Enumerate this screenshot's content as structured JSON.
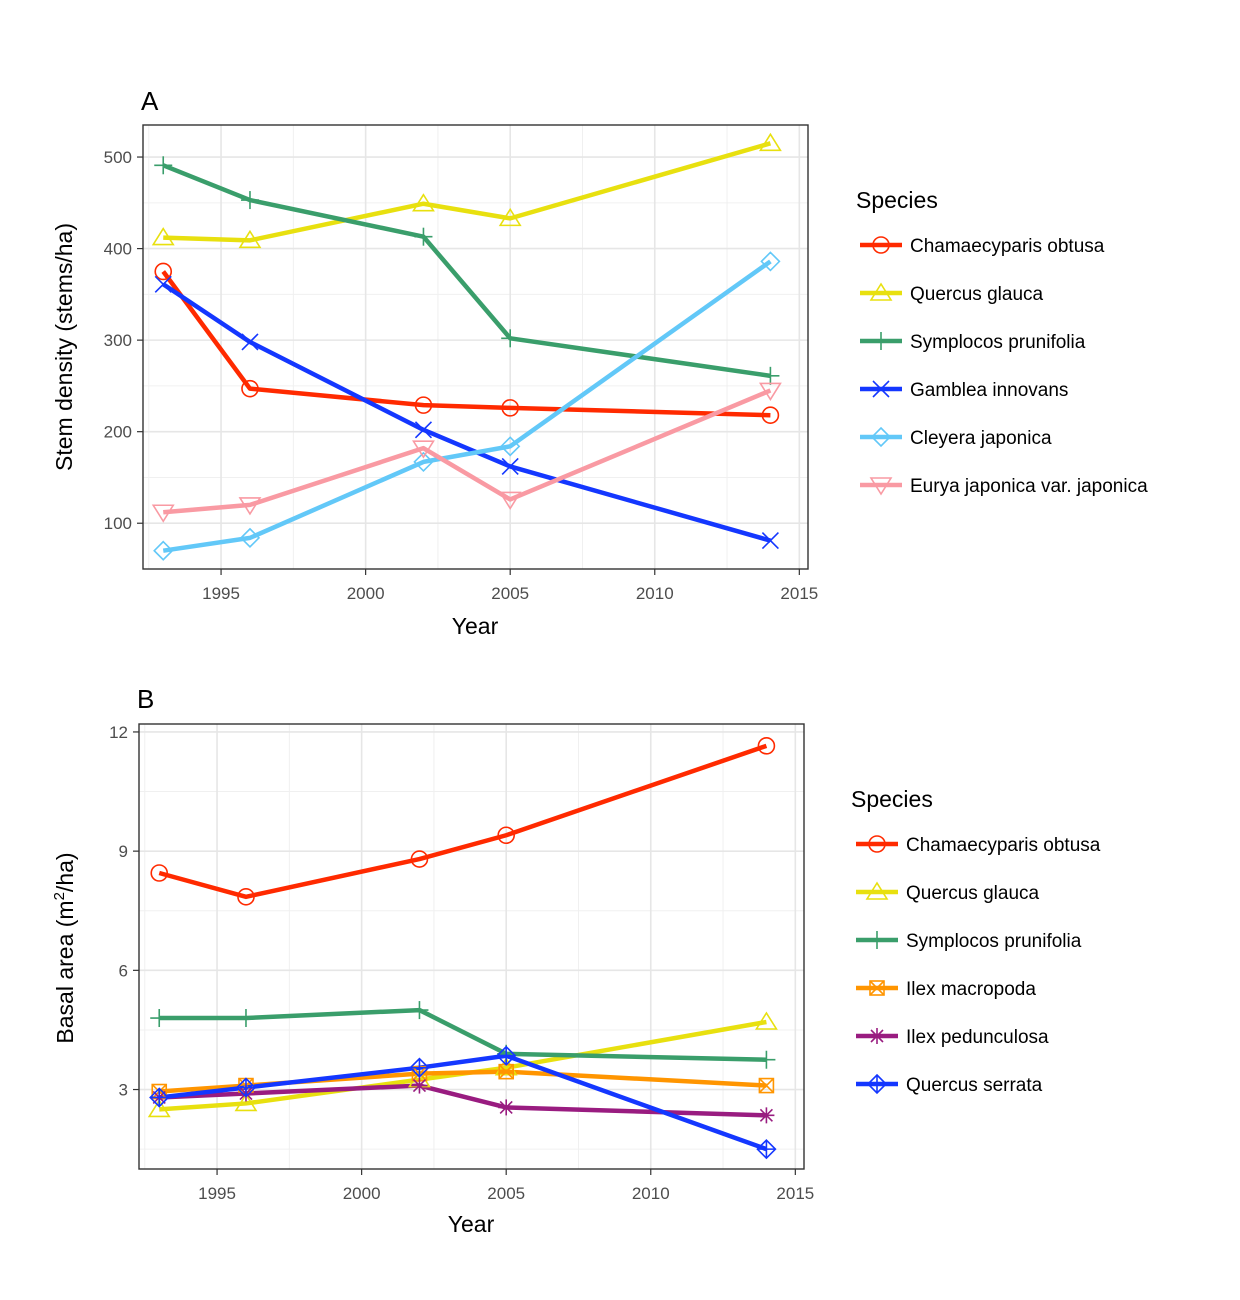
{
  "chart_data": [
    {
      "type": "line",
      "panel": "A",
      "xlabel": "Year",
      "ylabel": "Stem density (stems/ha)",
      "xlim": [
        1992.3,
        2015.3
      ],
      "ylim": [
        50,
        535
      ],
      "xticks": [
        1995,
        2000,
        2005,
        2010,
        2015
      ],
      "yticks": [
        100,
        200,
        300,
        400,
        500
      ],
      "grid": true,
      "legend_title": "Species",
      "legend_position": "right",
      "series": [
        {
          "name": "Chamaecyparis obtusa",
          "color": "#ff2a00",
          "marker": "circle",
          "x": [
            1993,
            1996,
            2002,
            2005,
            2014
          ],
          "y": [
            375,
            247,
            229,
            226,
            218
          ]
        },
        {
          "name": "Quercus glauca",
          "color": "#e8e00f",
          "marker": "triangle-up",
          "x": [
            1993,
            1996,
            2002,
            2005,
            2014
          ],
          "y": [
            412,
            409,
            449,
            433,
            515
          ]
        },
        {
          "name": "Symplocos prunifolia",
          "color": "#3a9e6b",
          "marker": "plus",
          "x": [
            1993,
            1996,
            2002,
            2005,
            2014
          ],
          "y": [
            491,
            453,
            413,
            302,
            261
          ]
        },
        {
          "name": "Gamblea innovans",
          "color": "#1437ff",
          "marker": "cross",
          "x": [
            1993,
            1996,
            2002,
            2005,
            2014
          ],
          "y": [
            361,
            298,
            202,
            162,
            81
          ]
        },
        {
          "name": "Cleyera japonica",
          "color": "#62c8f8",
          "marker": "diamond",
          "x": [
            1993,
            1996,
            2002,
            2005,
            2014
          ],
          "y": [
            70,
            84,
            167,
            184,
            386
          ]
        },
        {
          "name": "Eurya japonica var. japonica",
          "color": "#f99aa3",
          "marker": "triangle-down",
          "x": [
            1993,
            1996,
            2002,
            2005,
            2014
          ],
          "y": [
            112,
            120,
            182,
            126,
            245
          ]
        }
      ]
    },
    {
      "type": "line",
      "panel": "B",
      "xlabel": "Year",
      "ylabel_pre": "Basal area (m",
      "ylabel_sup": "2",
      "ylabel_post": "/ha)",
      "xlim": [
        1992.3,
        2015.3
      ],
      "ylim": [
        1.0,
        12.2
      ],
      "xticks": [
        1995,
        2000,
        2005,
        2010,
        2015
      ],
      "yticks": [
        3,
        6,
        9,
        12
      ],
      "grid": true,
      "legend_title": "Species",
      "legend_position": "right",
      "series": [
        {
          "name": "Chamaecyparis obtusa",
          "color": "#ff2a00",
          "marker": "circle",
          "x": [
            1993,
            1996,
            2002,
            2005,
            2014
          ],
          "y": [
            8.45,
            7.85,
            8.8,
            9.4,
            11.65
          ]
        },
        {
          "name": "Quercus glauca",
          "color": "#e8e00f",
          "marker": "triangle-up",
          "x": [
            1993,
            1996,
            2002,
            2005,
            2014
          ],
          "y": [
            2.5,
            2.65,
            3.25,
            3.55,
            4.7
          ]
        },
        {
          "name": "Symplocos prunifolia",
          "color": "#3a9e6b",
          "marker": "plus",
          "x": [
            1993,
            1996,
            2002,
            2005,
            2014
          ],
          "y": [
            4.8,
            4.8,
            5.0,
            3.9,
            3.75
          ]
        },
        {
          "name": "Ilex macropoda",
          "color": "#ff9500",
          "marker": "square-cross",
          "x": [
            1993,
            1996,
            2002,
            2005,
            2014
          ],
          "y": [
            2.95,
            3.1,
            3.4,
            3.45,
            3.1
          ]
        },
        {
          "name": "Ilex pedunculosa",
          "color": "#991c80",
          "marker": "asterisk",
          "x": [
            1993,
            1996,
            2002,
            2005,
            2014
          ],
          "y": [
            2.8,
            2.9,
            3.1,
            2.55,
            2.35
          ]
        },
        {
          "name": "Quercus serrata",
          "color": "#1437ff",
          "marker": "diamond-plus",
          "x": [
            1993,
            1996,
            2002,
            2005,
            2014
          ],
          "y": [
            2.8,
            3.05,
            3.55,
            3.85,
            1.5
          ]
        }
      ]
    }
  ]
}
